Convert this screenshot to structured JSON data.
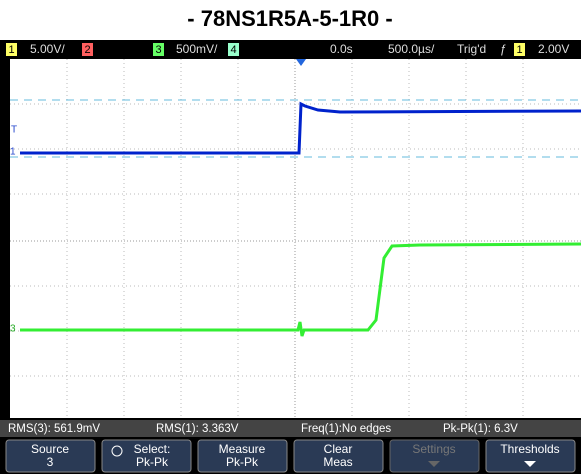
{
  "title": "- 78NS1R5A-5-1R0 -",
  "status": {
    "ch1": "1",
    "ch1_scale": "5.00V/",
    "ch2": "2",
    "ch3": "3",
    "ch3_scale": "500mV/",
    "ch4": "4",
    "delay": "0.0s",
    "timebase": "500.0µs/",
    "trigger_state": "Trig'd",
    "trigger_edge": "ƒ",
    "trigger_source": "1",
    "trigger_level": "2.00V"
  },
  "markers": {
    "trigger": "T",
    "ch1": "1",
    "ch3": "3"
  },
  "measurements": [
    "RMS(3): 561.9mV",
    "RMS(1): 3.363V",
    "Freq(1):No edges",
    "Pk-Pk(1): 6.3V"
  ],
  "softkeys": [
    [
      "Source",
      "3"
    ],
    [
      "Select:",
      "Pk-Pk"
    ],
    [
      "Measure",
      "Pk-Pk"
    ],
    [
      "Clear",
      "Meas"
    ],
    [
      "Settings"
    ],
    [
      "Thresholds"
    ]
  ]
}
